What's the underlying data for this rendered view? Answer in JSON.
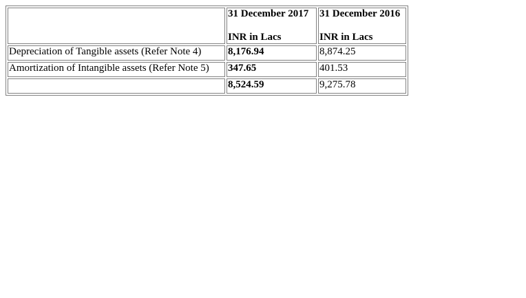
{
  "table": {
    "headers": [
      {
        "date": "31 December 2017",
        "unit": "INR in Lacs"
      },
      {
        "date": "31 December 2016",
        "unit": "INR in Lacs"
      }
    ],
    "rows": [
      {
        "label": "Depreciation of Tangible assets (Refer Note 4)",
        "v2017": "8,176.94",
        "v2016": "8,874.25"
      },
      {
        "label": "Amortization of Intangible assets (Refer Note 5)",
        "v2017": "347.65",
        "v2016": "401.53"
      },
      {
        "label": "",
        "v2017": "8,524.59",
        "v2016": "9,275.78"
      }
    ]
  }
}
